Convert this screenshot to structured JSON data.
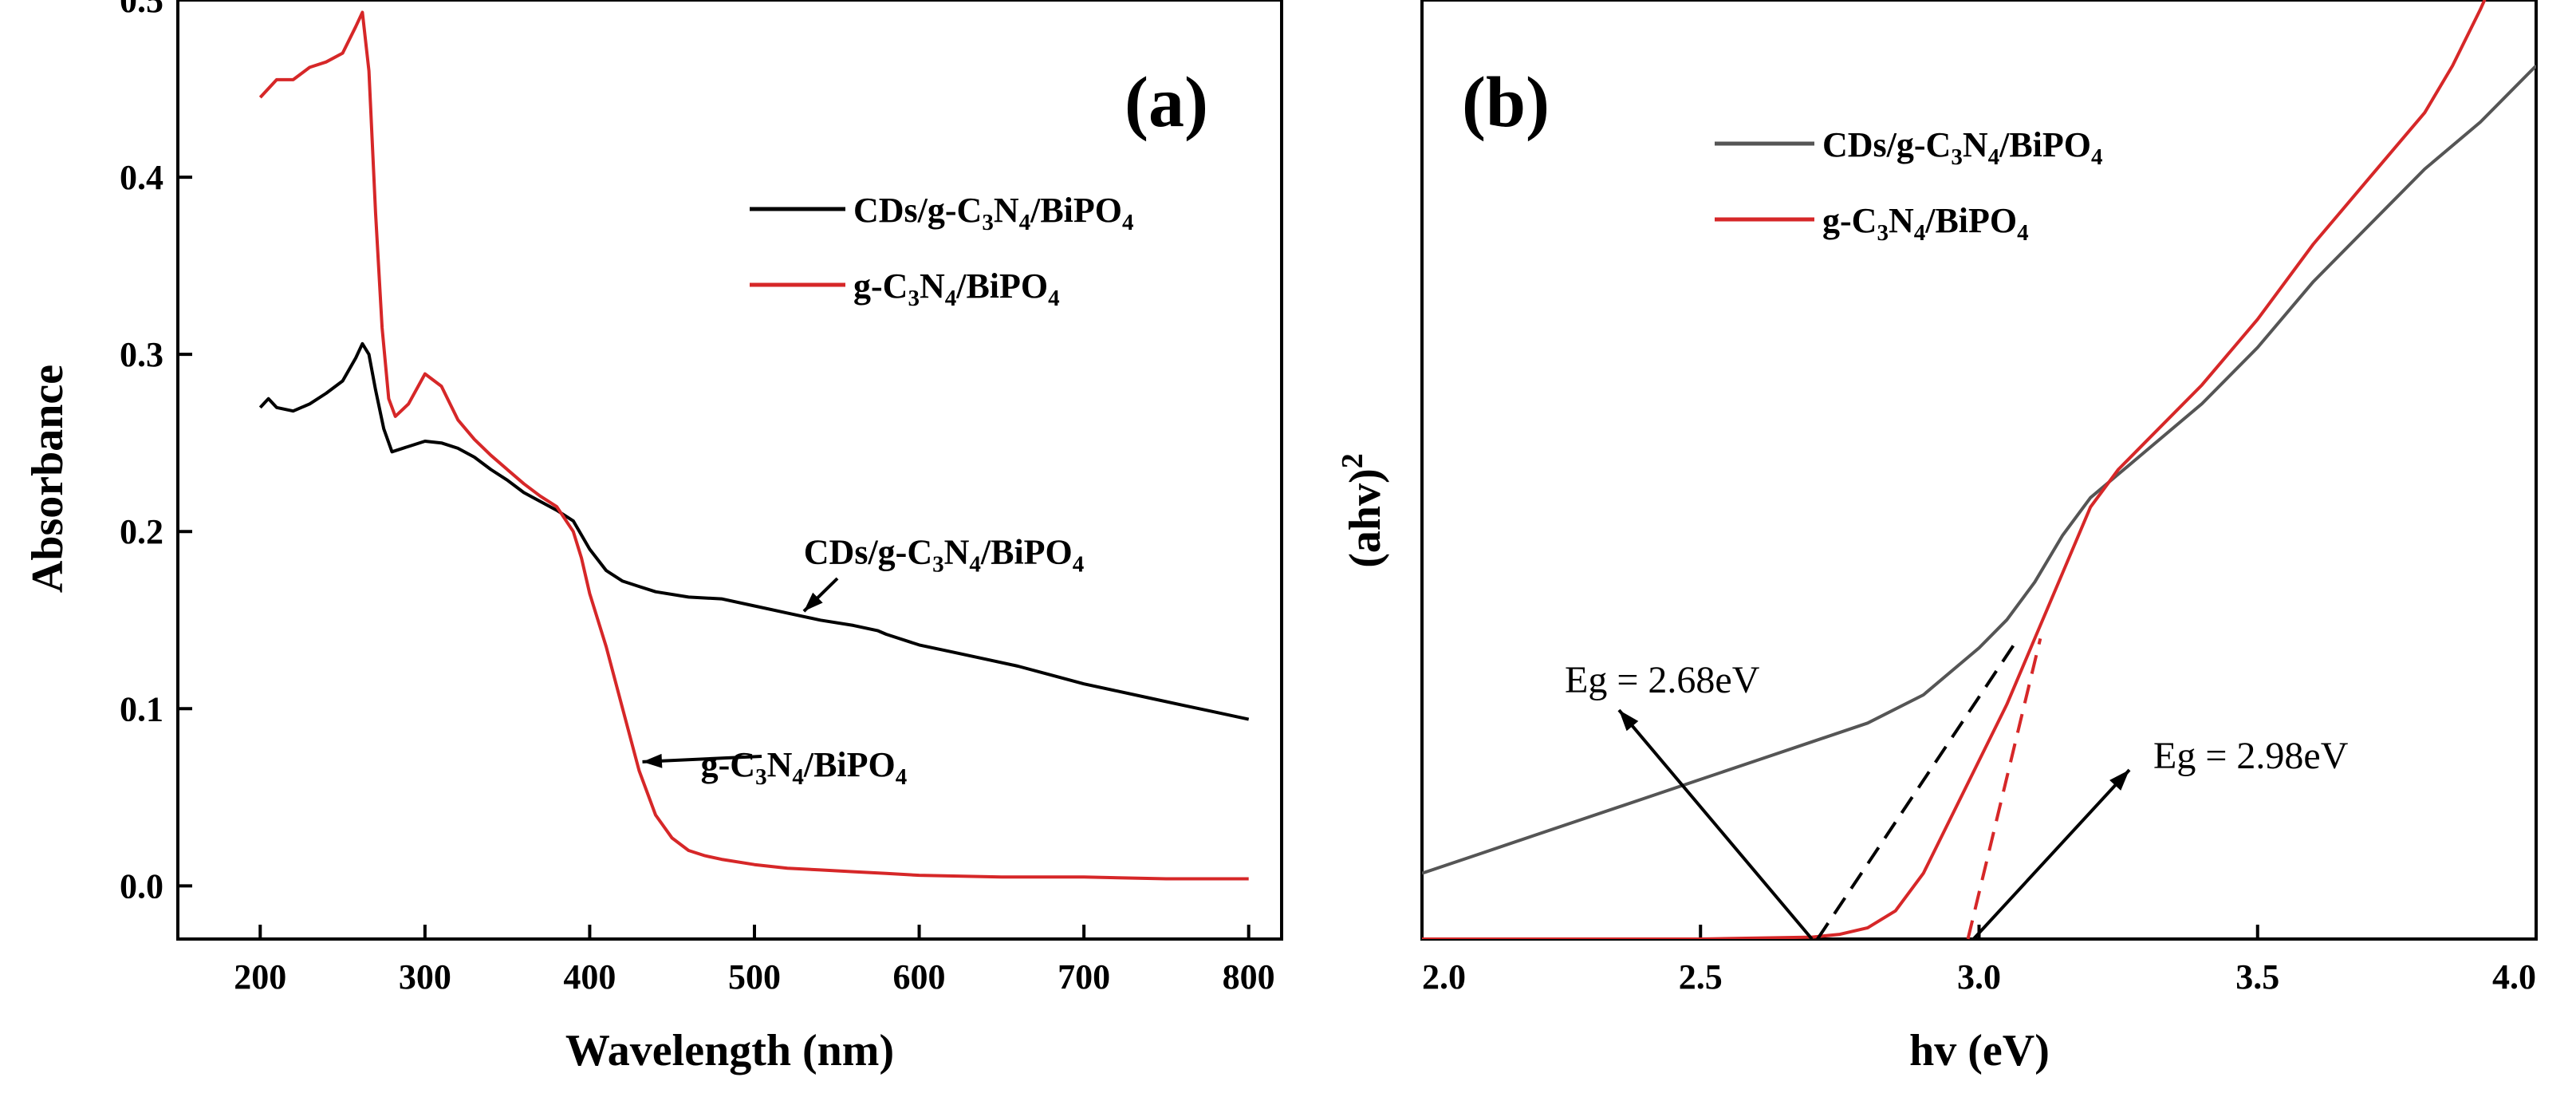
{
  "chart_data": [
    {
      "type": "line",
      "panel_label": "(a)",
      "xlabel": "Wavelength (nm)",
      "ylabel": "Absorbance",
      "xlim": [
        150,
        820
      ],
      "ylim": [
        -0.03,
        0.5
      ],
      "xticks": [
        200,
        300,
        400,
        500,
        600,
        700,
        800
      ],
      "yticks": [
        0.0,
        0.1,
        0.2,
        0.3,
        0.4,
        0.5
      ],
      "xtick_labels": [
        "200",
        "300",
        "400",
        "500",
        "600",
        "700",
        "800"
      ],
      "ytick_labels": [
        "0.0",
        "0.1",
        "0.2",
        "0.3",
        "0.4",
        "0.5"
      ],
      "legend": [
        {
          "name": "CDs/g-C3N4/BiPO4",
          "color": "#000000"
        },
        {
          "name": "g-C3N4/BiPO4",
          "color": "#d62728"
        }
      ],
      "series": [
        {
          "name": "CDs/g-C3N4/BiPO4",
          "color": "#000000",
          "x": [
            200,
            205,
            210,
            220,
            230,
            240,
            250,
            258,
            262,
            266,
            270,
            275,
            280,
            290,
            300,
            310,
            320,
            330,
            340,
            350,
            360,
            370,
            380,
            390,
            400,
            410,
            420,
            430,
            440,
            460,
            480,
            500,
            520,
            540,
            560,
            575,
            580,
            600,
            620,
            640,
            660,
            680,
            700,
            720,
            740,
            760,
            780,
            800
          ],
          "y": [
            0.27,
            0.275,
            0.27,
            0.268,
            0.272,
            0.278,
            0.285,
            0.298,
            0.306,
            0.3,
            0.28,
            0.258,
            0.245,
            0.248,
            0.251,
            0.25,
            0.247,
            0.242,
            0.235,
            0.229,
            0.222,
            0.217,
            0.212,
            0.206,
            0.19,
            0.178,
            0.172,
            0.169,
            0.166,
            0.163,
            0.162,
            0.158,
            0.154,
            0.15,
            0.147,
            0.144,
            0.142,
            0.136,
            0.132,
            0.128,
            0.124,
            0.119,
            0.114,
            0.11,
            0.106,
            0.102,
            0.098,
            0.094
          ]
        },
        {
          "name": "g-C3N4/BiPO4",
          "color": "#d62728",
          "x": [
            200,
            205,
            210,
            220,
            230,
            240,
            250,
            258,
            262,
            266,
            270,
            274,
            278,
            282,
            290,
            300,
            310,
            320,
            330,
            340,
            350,
            360,
            370,
            380,
            390,
            395,
            400,
            410,
            420,
            430,
            440,
            450,
            460,
            470,
            480,
            500,
            520,
            540,
            560,
            580,
            600,
            650,
            700,
            750,
            800
          ],
          "y": [
            0.445,
            0.45,
            0.455,
            0.455,
            0.462,
            0.465,
            0.47,
            0.485,
            0.493,
            0.46,
            0.38,
            0.315,
            0.275,
            0.265,
            0.272,
            0.289,
            0.282,
            0.263,
            0.252,
            0.243,
            0.235,
            0.227,
            0.22,
            0.214,
            0.2,
            0.185,
            0.165,
            0.135,
            0.1,
            0.065,
            0.04,
            0.027,
            0.02,
            0.017,
            0.015,
            0.012,
            0.01,
            0.009,
            0.008,
            0.007,
            0.006,
            0.005,
            0.005,
            0.004,
            0.004
          ]
        }
      ],
      "annotations": [
        {
          "text": "CDs/g-C3N4/BiPO4",
          "point_x": 530,
          "point_y": 0.155,
          "text_x": 615,
          "text_y": 0.19
        },
        {
          "text": "g-C3N4/BiPO4",
          "point_x": 432,
          "point_y": 0.07,
          "text_x": 530,
          "text_y": 0.07
        }
      ]
    },
    {
      "type": "line",
      "panel_label": "(b)",
      "xlabel": "hv (eV)",
      "ylabel": "(ahv)2",
      "xlim": [
        2.0,
        4.0
      ],
      "ylim": [
        0,
        1.0
      ],
      "y_ticks_shown": false,
      "xticks": [
        2.0,
        2.5,
        3.0,
        3.5,
        4.0
      ],
      "xtick_labels": [
        "2.0",
        "2.5",
        "3.0",
        "3.5",
        "4.0"
      ],
      "legend": [
        {
          "name": "CDs/g-C3N4/BiPO4",
          "color": "#555555"
        },
        {
          "name": "g-C3N4/BiPO4",
          "color": "#d62728"
        }
      ],
      "series": [
        {
          "name": "CDs/g-C3N4/BiPO4",
          "color": "#555555",
          "x": [
            2.0,
            2.1,
            2.2,
            2.3,
            2.4,
            2.5,
            2.6,
            2.7,
            2.8,
            2.9,
            3.0,
            3.05,
            3.1,
            3.15,
            3.2,
            3.25,
            3.3,
            3.4,
            3.5,
            3.6,
            3.7,
            3.8,
            3.9,
            4.0
          ],
          "y": [
            0.07,
            0.09,
            0.11,
            0.13,
            0.15,
            0.17,
            0.19,
            0.21,
            0.23,
            0.26,
            0.31,
            0.34,
            0.38,
            0.43,
            0.47,
            0.495,
            0.52,
            0.57,
            0.63,
            0.7,
            0.76,
            0.82,
            0.87,
            0.93
          ]
        },
        {
          "name": "g-C3N4/BiPO4",
          "color": "#d62728",
          "x": [
            2.0,
            2.5,
            2.7,
            2.75,
            2.8,
            2.85,
            2.9,
            2.95,
            3.0,
            3.05,
            3.1,
            3.15,
            3.2,
            3.25,
            3.3,
            3.4,
            3.5,
            3.6,
            3.7,
            3.8,
            3.85,
            3.9,
            3.93
          ],
          "y": [
            0.0,
            0.0,
            0.002,
            0.005,
            0.012,
            0.03,
            0.07,
            0.13,
            0.19,
            0.25,
            0.32,
            0.39,
            0.46,
            0.5,
            0.53,
            0.59,
            0.66,
            0.74,
            0.81,
            0.88,
            0.93,
            0.99,
            1.03
          ]
        }
      ],
      "tangents": [
        {
          "color": "#000000",
          "x": [
            2.71,
            3.07
          ],
          "y": [
            0.0,
            0.32
          ]
        },
        {
          "color": "#d62728",
          "x": [
            2.98,
            3.11
          ],
          "y": [
            0.0,
            0.32
          ]
        }
      ],
      "annotations": [
        {
          "text": "Eg = 2.68eV",
          "point_x": 2.7,
          "point_y": 0.0,
          "text_x": 2.42,
          "text_y": 0.3
        },
        {
          "text": "Eg = 2.98eV",
          "point_x": 2.99,
          "point_y": 0.0,
          "text_x": 3.26,
          "text_y": 0.2
        }
      ]
    }
  ]
}
